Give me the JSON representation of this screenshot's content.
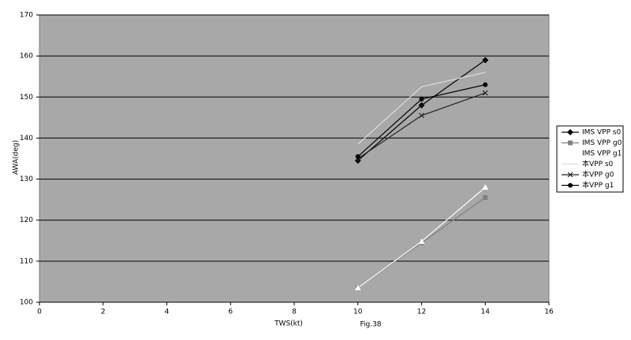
{
  "chart_data": {
    "type": "line",
    "x_label": "TWS(kt)",
    "y_label": "AWA(deg)",
    "caption": "Fig.38",
    "x": [
      10,
      12,
      14
    ],
    "series": [
      {
        "name": "IMS VPP  s0",
        "color": "#000000",
        "marker": "diamond",
        "values": [
          134.5,
          148,
          159
        ]
      },
      {
        "name": "IMS VPP  g0",
        "color": "#808080",
        "marker": "square",
        "values": [
          103.5,
          114.5,
          125.5
        ]
      },
      {
        "name": "IMS VPP  g1",
        "color": "#ffffff",
        "marker": "triangle",
        "values": [
          103.5,
          114.8,
          128
        ]
      },
      {
        "name": "本VPP  s0",
        "color": "#dcdcdc",
        "marker": "none",
        "values": [
          138.5,
          152.5,
          156
        ]
      },
      {
        "name": "本VPP  g0",
        "color": "#222222",
        "marker": "x",
        "values": [
          135,
          145.5,
          151
        ]
      },
      {
        "name": "本VPP  g1",
        "color": "#000000",
        "marker": "circle",
        "values": [
          135.5,
          149.5,
          153
        ]
      }
    ],
    "xlim": [
      0,
      16
    ],
    "xticks": [
      0,
      2,
      4,
      6,
      8,
      10,
      12,
      14,
      16
    ],
    "ylim": [
      100,
      170
    ],
    "yticks": [
      100,
      110,
      120,
      130,
      140,
      150,
      160,
      170
    ],
    "grid": true,
    "legend": "right"
  }
}
